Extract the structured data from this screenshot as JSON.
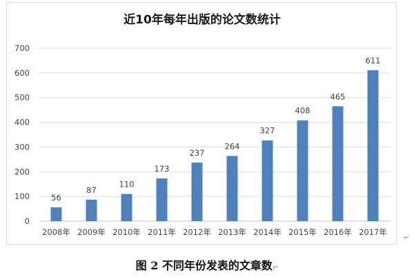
{
  "caption": {
    "text": "图 2  不同年份发表的文章数",
    "return_mark": "↵"
  },
  "frame_return_mark": "↵",
  "colors": {
    "bar": "#4f81bd",
    "grid": "#d9d9d9",
    "axis": "#bfbfbf"
  },
  "chart_data": {
    "type": "bar",
    "title": "近10年每年出版的论文数统计",
    "xlabel": "",
    "ylabel": "",
    "categories": [
      "2008年",
      "2009年",
      "2010年",
      "2011年",
      "2012年",
      "2013年",
      "2014年",
      "2015年",
      "2016年",
      "2017年"
    ],
    "values": [
      56,
      87,
      110,
      173,
      237,
      264,
      327,
      408,
      465,
      611
    ],
    "ylim": [
      0,
      700
    ],
    "yticks": [
      0,
      100,
      200,
      300,
      400,
      500,
      600,
      700
    ],
    "grid": true,
    "legend": "none",
    "data_labels": true
  }
}
